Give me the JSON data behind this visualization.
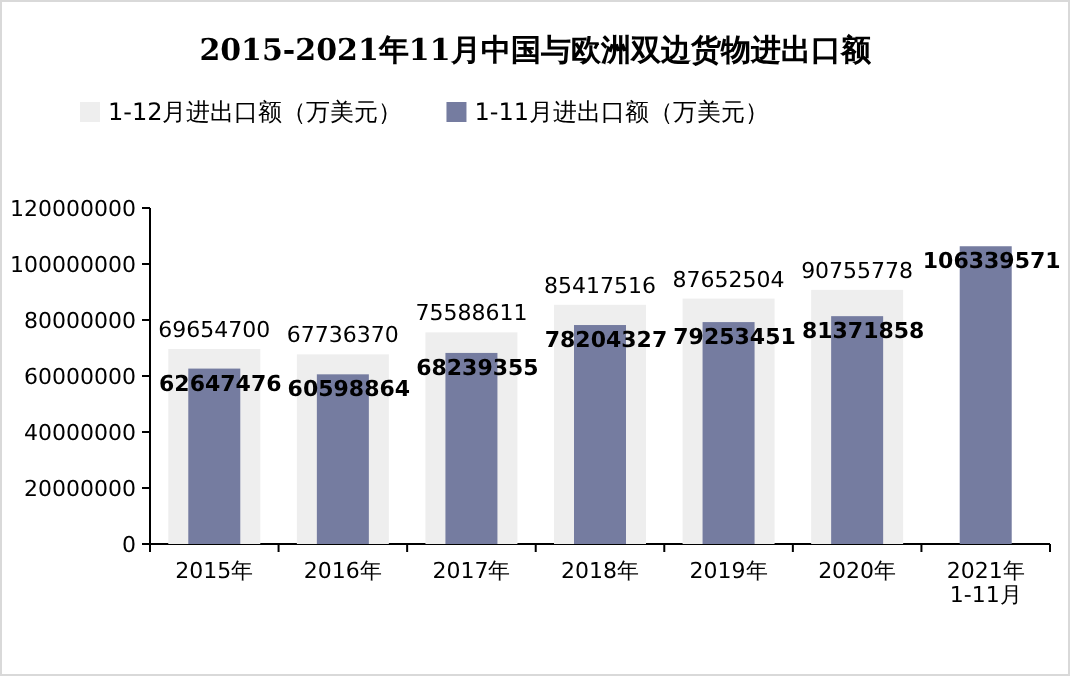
{
  "chart_data": {
    "type": "bar",
    "title": "2015-2021年11月中国与欧洲双边货物进出口额",
    "categories": [
      "2015年",
      "2016年",
      "2017年",
      "2018年",
      "2019年",
      "2020年",
      "2021年\n1-11月"
    ],
    "series": [
      {
        "name": "1-12月进出口额（万美元）",
        "color": "#eeeeee",
        "values": [
          69654700,
          67736370,
          75588611,
          85417516,
          87652504,
          90755778,
          null
        ]
      },
      {
        "name": "1-11月进出口额（万美元）",
        "color": "#757ca0",
        "values": [
          62647476,
          60598864,
          68239355,
          78204327,
          79253451,
          81371858,
          106339571
        ]
      }
    ],
    "ylim": [
      0,
      120000000
    ],
    "yticks": [
      0,
      20000000,
      40000000,
      60000000,
      80000000,
      100000000,
      120000000
    ],
    "data_labels": true,
    "legend": "top",
    "grid": false
  }
}
